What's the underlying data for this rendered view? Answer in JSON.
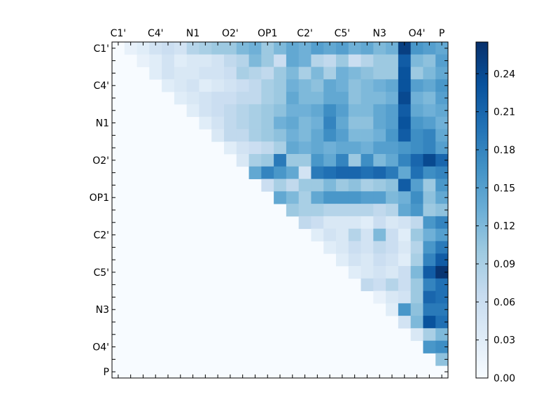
{
  "chart_data": {
    "type": "heatmap",
    "title": "",
    "xlabel": "",
    "ylabel": "",
    "triangle": "upper",
    "n": 27,
    "x_tick_labels": [
      "C1'",
      "C4'",
      "N1",
      "O2'",
      "OP1",
      "C2'",
      "C5'",
      "N3",
      "O4'",
      "P"
    ],
    "y_tick_labels": [
      "C1'",
      "C4'",
      "N1",
      "O2'",
      "OP1",
      "C2'",
      "C5'",
      "N3",
      "O4'",
      "P"
    ],
    "tick_indices": [
      0,
      3,
      6,
      9,
      12,
      15,
      18,
      21,
      24,
      26
    ],
    "colorbar": {
      "min": 0.0,
      "max": 0.265,
      "ticks": [
        "0.00",
        "0.03",
        "0.06",
        "0.09",
        "0.12",
        "0.15",
        "0.18",
        "0.21",
        "0.24"
      ],
      "tick_values": [
        0.0,
        0.03,
        0.06,
        0.09,
        0.12,
        0.15,
        0.18,
        0.21,
        0.24
      ],
      "colormap": "Blues"
    },
    "values": [
      [
        0.0,
        0.02,
        0.03,
        0.05,
        0.06,
        0.05,
        0.08,
        0.09,
        0.1,
        0.1,
        0.12,
        0.13,
        0.1,
        0.12,
        0.14,
        0.13,
        0.15,
        0.14,
        0.15,
        0.13,
        0.14,
        0.12,
        0.13,
        0.25,
        0.16,
        0.15,
        0.14
      ],
      [
        0.0,
        0.0,
        0.02,
        0.03,
        0.05,
        0.03,
        0.04,
        0.04,
        0.05,
        0.07,
        0.08,
        0.12,
        0.1,
        0.06,
        0.14,
        0.13,
        0.08,
        0.07,
        0.1,
        0.06,
        0.08,
        0.1,
        0.1,
        0.22,
        0.12,
        0.11,
        0.15
      ],
      [
        0.0,
        0.0,
        0.0,
        0.03,
        0.05,
        0.04,
        0.04,
        0.05,
        0.05,
        0.06,
        0.09,
        0.08,
        0.07,
        0.1,
        0.12,
        0.09,
        0.12,
        0.09,
        0.13,
        0.12,
        0.11,
        0.1,
        0.1,
        0.23,
        0.1,
        0.12,
        0.14
      ],
      [
        0.0,
        0.0,
        0.0,
        0.0,
        0.03,
        0.04,
        0.05,
        0.03,
        0.04,
        0.05,
        0.06,
        0.07,
        0.09,
        0.1,
        0.13,
        0.12,
        0.11,
        0.14,
        0.13,
        0.11,
        0.12,
        0.13,
        0.14,
        0.23,
        0.15,
        0.14,
        0.16
      ],
      [
        0.0,
        0.0,
        0.0,
        0.0,
        0.0,
        0.03,
        0.04,
        0.05,
        0.06,
        0.06,
        0.07,
        0.07,
        0.09,
        0.1,
        0.14,
        0.12,
        0.12,
        0.14,
        0.14,
        0.11,
        0.12,
        0.12,
        0.13,
        0.24,
        0.13,
        0.12,
        0.15
      ],
      [
        0.0,
        0.0,
        0.0,
        0.0,
        0.0,
        0.0,
        0.03,
        0.05,
        0.06,
        0.07,
        0.08,
        0.09,
        0.1,
        0.11,
        0.13,
        0.13,
        0.14,
        0.17,
        0.15,
        0.12,
        0.12,
        0.14,
        0.15,
        0.22,
        0.14,
        0.13,
        0.14
      ],
      [
        0.0,
        0.0,
        0.0,
        0.0,
        0.0,
        0.0,
        0.0,
        0.03,
        0.05,
        0.07,
        0.08,
        0.09,
        0.1,
        0.13,
        0.14,
        0.12,
        0.13,
        0.18,
        0.14,
        0.11,
        0.11,
        0.14,
        0.15,
        0.23,
        0.16,
        0.15,
        0.13
      ],
      [
        0.0,
        0.0,
        0.0,
        0.0,
        0.0,
        0.0,
        0.0,
        0.0,
        0.04,
        0.07,
        0.07,
        0.09,
        0.1,
        0.11,
        0.13,
        0.12,
        0.14,
        0.17,
        0.15,
        0.12,
        0.12,
        0.13,
        0.16,
        0.22,
        0.17,
        0.18,
        0.14
      ],
      [
        0.0,
        0.0,
        0.0,
        0.0,
        0.0,
        0.0,
        0.0,
        0.0,
        0.0,
        0.03,
        0.05,
        0.06,
        0.07,
        0.09,
        0.14,
        0.13,
        0.14,
        0.13,
        0.14,
        0.14,
        0.13,
        0.15,
        0.15,
        0.16,
        0.17,
        0.18,
        0.15
      ],
      [
        0.0,
        0.0,
        0.0,
        0.0,
        0.0,
        0.0,
        0.0,
        0.0,
        0.0,
        0.0,
        0.04,
        0.09,
        0.1,
        0.19,
        0.1,
        0.1,
        0.16,
        0.14,
        0.18,
        0.1,
        0.17,
        0.12,
        0.14,
        0.18,
        0.21,
        0.24,
        0.21
      ],
      [
        0.0,
        0.0,
        0.0,
        0.0,
        0.0,
        0.0,
        0.0,
        0.0,
        0.0,
        0.0,
        0.0,
        0.14,
        0.18,
        0.16,
        0.14,
        0.05,
        0.19,
        0.2,
        0.21,
        0.21,
        0.2,
        0.21,
        0.19,
        0.14,
        0.2,
        0.17,
        0.18
      ],
      [
        0.0,
        0.0,
        0.0,
        0.0,
        0.0,
        0.0,
        0.0,
        0.0,
        0.0,
        0.0,
        0.0,
        0.0,
        0.06,
        0.09,
        0.07,
        0.1,
        0.1,
        0.12,
        0.1,
        0.11,
        0.09,
        0.1,
        0.11,
        0.22,
        0.15,
        0.1,
        0.16
      ],
      [
        0.0,
        0.0,
        0.0,
        0.0,
        0.0,
        0.0,
        0.0,
        0.0,
        0.0,
        0.0,
        0.0,
        0.0,
        0.0,
        0.14,
        0.12,
        0.09,
        0.14,
        0.16,
        0.16,
        0.16,
        0.15,
        0.15,
        0.12,
        0.13,
        0.17,
        0.11,
        0.14
      ],
      [
        0.0,
        0.0,
        0.0,
        0.0,
        0.0,
        0.0,
        0.0,
        0.0,
        0.0,
        0.0,
        0.0,
        0.0,
        0.0,
        0.0,
        0.1,
        0.09,
        0.09,
        0.08,
        0.08,
        0.08,
        0.08,
        0.07,
        0.08,
        0.14,
        0.16,
        0.1,
        0.11
      ],
      [
        0.0,
        0.0,
        0.0,
        0.0,
        0.0,
        0.0,
        0.0,
        0.0,
        0.0,
        0.0,
        0.0,
        0.0,
        0.0,
        0.0,
        0.0,
        0.07,
        0.06,
        0.04,
        0.04,
        0.04,
        0.03,
        0.06,
        0.04,
        0.05,
        0.07,
        0.16,
        0.18
      ],
      [
        0.0,
        0.0,
        0.0,
        0.0,
        0.0,
        0.0,
        0.0,
        0.0,
        0.0,
        0.0,
        0.0,
        0.0,
        0.0,
        0.0,
        0.0,
        0.0,
        0.03,
        0.05,
        0.04,
        0.08,
        0.05,
        0.12,
        0.06,
        0.03,
        0.1,
        0.13,
        0.15
      ],
      [
        0.0,
        0.0,
        0.0,
        0.0,
        0.0,
        0.0,
        0.0,
        0.0,
        0.0,
        0.0,
        0.0,
        0.0,
        0.0,
        0.0,
        0.0,
        0.0,
        0.0,
        0.03,
        0.04,
        0.06,
        0.05,
        0.07,
        0.06,
        0.04,
        0.08,
        0.16,
        0.19
      ],
      [
        0.0,
        0.0,
        0.0,
        0.0,
        0.0,
        0.0,
        0.0,
        0.0,
        0.0,
        0.0,
        0.0,
        0.0,
        0.0,
        0.0,
        0.0,
        0.0,
        0.0,
        0.0,
        0.03,
        0.05,
        0.04,
        0.06,
        0.05,
        0.03,
        0.09,
        0.18,
        0.22
      ],
      [
        0.0,
        0.0,
        0.0,
        0.0,
        0.0,
        0.0,
        0.0,
        0.0,
        0.0,
        0.0,
        0.0,
        0.0,
        0.0,
        0.0,
        0.0,
        0.0,
        0.0,
        0.0,
        0.0,
        0.03,
        0.04,
        0.05,
        0.04,
        0.06,
        0.12,
        0.22,
        0.26
      ],
      [
        0.0,
        0.0,
        0.0,
        0.0,
        0.0,
        0.0,
        0.0,
        0.0,
        0.0,
        0.0,
        0.0,
        0.0,
        0.0,
        0.0,
        0.0,
        0.0,
        0.0,
        0.0,
        0.0,
        0.0,
        0.07,
        0.06,
        0.08,
        0.06,
        0.1,
        0.18,
        0.2
      ],
      [
        0.0,
        0.0,
        0.0,
        0.0,
        0.0,
        0.0,
        0.0,
        0.0,
        0.0,
        0.0,
        0.0,
        0.0,
        0.0,
        0.0,
        0.0,
        0.0,
        0.0,
        0.0,
        0.0,
        0.0,
        0.0,
        0.02,
        0.04,
        0.05,
        0.1,
        0.21,
        0.2
      ],
      [
        0.0,
        0.0,
        0.0,
        0.0,
        0.0,
        0.0,
        0.0,
        0.0,
        0.0,
        0.0,
        0.0,
        0.0,
        0.0,
        0.0,
        0.0,
        0.0,
        0.0,
        0.0,
        0.0,
        0.0,
        0.0,
        0.0,
        0.03,
        0.16,
        0.11,
        0.19,
        0.19
      ],
      [
        0.0,
        0.0,
        0.0,
        0.0,
        0.0,
        0.0,
        0.0,
        0.0,
        0.0,
        0.0,
        0.0,
        0.0,
        0.0,
        0.0,
        0.0,
        0.0,
        0.0,
        0.0,
        0.0,
        0.0,
        0.0,
        0.0,
        0.0,
        0.05,
        0.12,
        0.23,
        0.2
      ],
      [
        0.0,
        0.0,
        0.0,
        0.0,
        0.0,
        0.0,
        0.0,
        0.0,
        0.0,
        0.0,
        0.0,
        0.0,
        0.0,
        0.0,
        0.0,
        0.0,
        0.0,
        0.0,
        0.0,
        0.0,
        0.0,
        0.0,
        0.0,
        0.0,
        0.04,
        0.09,
        0.12
      ],
      [
        0.0,
        0.0,
        0.0,
        0.0,
        0.0,
        0.0,
        0.0,
        0.0,
        0.0,
        0.0,
        0.0,
        0.0,
        0.0,
        0.0,
        0.0,
        0.0,
        0.0,
        0.0,
        0.0,
        0.0,
        0.0,
        0.0,
        0.0,
        0.0,
        0.0,
        0.16,
        0.17
      ],
      [
        0.0,
        0.0,
        0.0,
        0.0,
        0.0,
        0.0,
        0.0,
        0.0,
        0.0,
        0.0,
        0.0,
        0.0,
        0.0,
        0.0,
        0.0,
        0.0,
        0.0,
        0.0,
        0.0,
        0.0,
        0.0,
        0.0,
        0.0,
        0.0,
        0.0,
        0.0,
        0.11
      ],
      [
        0.0,
        0.0,
        0.0,
        0.0,
        0.0,
        0.0,
        0.0,
        0.0,
        0.0,
        0.0,
        0.0,
        0.0,
        0.0,
        0.0,
        0.0,
        0.0,
        0.0,
        0.0,
        0.0,
        0.0,
        0.0,
        0.0,
        0.0,
        0.0,
        0.0,
        0.0,
        0.0
      ]
    ]
  }
}
